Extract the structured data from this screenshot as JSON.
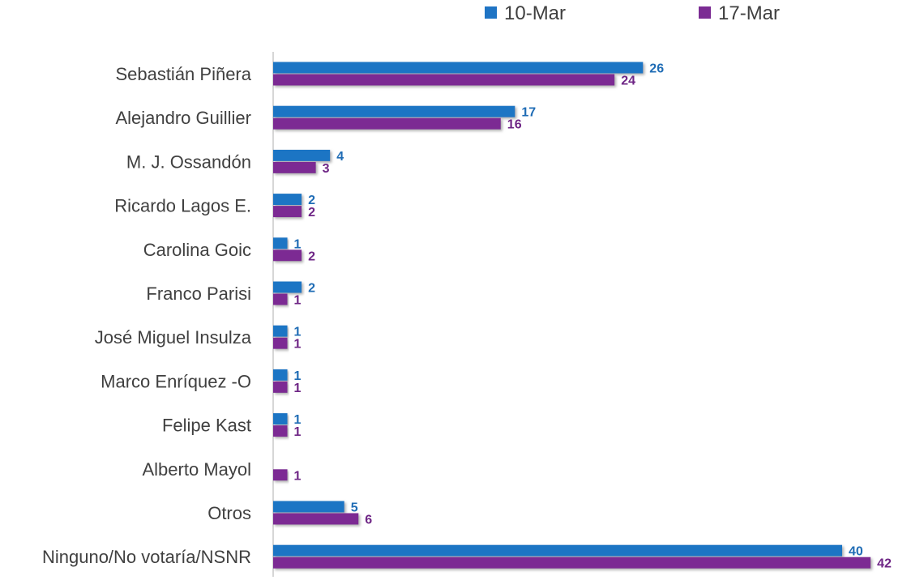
{
  "chart_data": {
    "type": "bar",
    "orientation": "horizontal",
    "categories": [
      "Sebastián Piñera",
      "Alejandro  Guillier",
      "M. J. Ossandón",
      "Ricardo Lagos E.",
      "Carolina Goic",
      "Franco Parisi",
      "José Miguel Insulza",
      "Marco Enríquez -O",
      "Felipe Kast",
      "Alberto Mayol",
      "Otros",
      "Ninguno/No votaría/NSNR"
    ],
    "series": [
      {
        "name": "10-Mar",
        "color": "#1f74c4",
        "values": [
          26,
          17,
          4,
          2,
          1,
          2,
          1,
          1,
          1,
          null,
          5,
          40
        ],
        "labels": [
          "26",
          "17",
          "4",
          "2",
          "1",
          "2",
          "1",
          "1",
          "1",
          "",
          "5",
          "40"
        ]
      },
      {
        "name": "17-Mar",
        "color": "#7b2c93",
        "values": [
          24,
          16,
          3,
          2,
          2,
          1,
          1,
          1,
          1,
          1,
          6,
          42
        ],
        "labels": [
          "24",
          "16",
          "3",
          "2",
          "2",
          "1",
          "1",
          "1",
          "1",
          "1",
          "6",
          "42"
        ]
      }
    ],
    "xlim": [
      0,
      42
    ],
    "grid": false,
    "legend_position": "top",
    "title": "",
    "xlabel": "",
    "ylabel": ""
  }
}
